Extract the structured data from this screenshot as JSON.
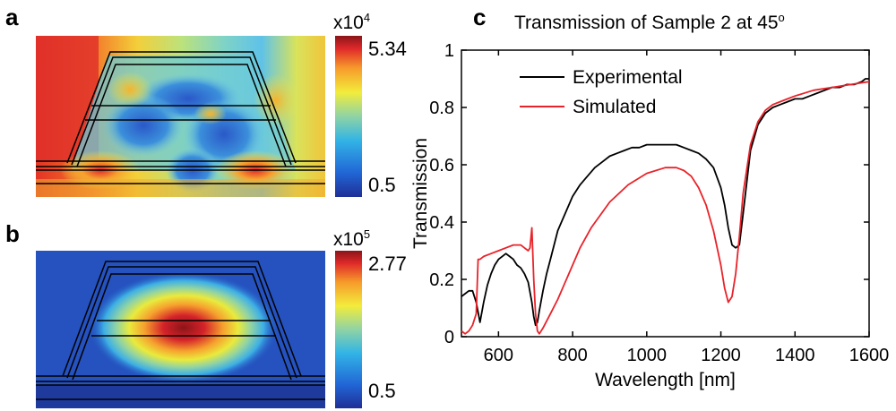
{
  "panels": {
    "a": {
      "letter": "a",
      "colorbar_exponent_base": "x10",
      "colorbar_exponent_power": "4",
      "colorbar_max": "5.34",
      "colorbar_min": "0.5"
    },
    "b": {
      "letter": "b",
      "colorbar_exponent_base": "x10",
      "colorbar_exponent_power": "5",
      "colorbar_max": "2.77",
      "colorbar_min": "0.5"
    },
    "c": {
      "letter": "c"
    }
  },
  "colors": {
    "experimental": "#000000",
    "simulated": "#e8232a"
  },
  "chart_data": [
    {
      "type": "heatmap",
      "panel": "a",
      "colorbar_range": [
        0.5,
        5.34
      ],
      "colorbar_scale": "x10^4"
    },
    {
      "type": "heatmap",
      "panel": "b",
      "colorbar_range": [
        0.5,
        2.77
      ],
      "colorbar_scale": "x10^5"
    },
    {
      "type": "line",
      "panel": "c",
      "title_main": "Transmission of Sample 2 at 45",
      "title_sup": "o",
      "xlabel": "Wavelength [nm]",
      "ylabel": "Transmission",
      "xlim": [
        500,
        1600
      ],
      "ylim": [
        0,
        1
      ],
      "xticks": [
        600,
        800,
        1000,
        1200,
        1400,
        1600
      ],
      "yticks": [
        0,
        0.2,
        0.4,
        0.6,
        0.8,
        1
      ],
      "ytick_labels": [
        "0",
        "0.2",
        "0.4",
        "0.6",
        "0.8",
        "1"
      ],
      "legend_position": "top-center",
      "series": [
        {
          "name": "Experimental",
          "color": "#000000",
          "x": [
            500,
            510,
            520,
            530,
            540,
            550,
            560,
            570,
            580,
            590,
            600,
            610,
            620,
            630,
            640,
            650,
            660,
            670,
            680,
            690,
            695,
            700,
            705,
            710,
            720,
            730,
            740,
            750,
            760,
            780,
            800,
            820,
            840,
            860,
            880,
            900,
            920,
            940,
            960,
            980,
            1000,
            1020,
            1040,
            1060,
            1080,
            1100,
            1120,
            1140,
            1160,
            1180,
            1200,
            1210,
            1220,
            1230,
            1240,
            1250,
            1260,
            1280,
            1300,
            1320,
            1340,
            1360,
            1380,
            1400,
            1420,
            1440,
            1460,
            1480,
            1500,
            1520,
            1540,
            1560,
            1580,
            1590,
            1600
          ],
          "y": [
            0.14,
            0.15,
            0.16,
            0.16,
            0.12,
            0.05,
            0.12,
            0.18,
            0.22,
            0.25,
            0.27,
            0.28,
            0.29,
            0.28,
            0.27,
            0.25,
            0.24,
            0.22,
            0.19,
            0.12,
            0.07,
            0.04,
            0.05,
            0.09,
            0.16,
            0.22,
            0.27,
            0.32,
            0.37,
            0.43,
            0.49,
            0.53,
            0.56,
            0.59,
            0.61,
            0.63,
            0.64,
            0.65,
            0.66,
            0.66,
            0.67,
            0.67,
            0.67,
            0.67,
            0.67,
            0.66,
            0.65,
            0.64,
            0.62,
            0.59,
            0.52,
            0.46,
            0.38,
            0.32,
            0.31,
            0.32,
            0.43,
            0.65,
            0.74,
            0.78,
            0.8,
            0.81,
            0.82,
            0.83,
            0.83,
            0.84,
            0.85,
            0.86,
            0.87,
            0.87,
            0.88,
            0.88,
            0.89,
            0.9,
            0.9
          ]
        },
        {
          "name": "Simulated",
          "color": "#e8232a",
          "x": [
            500,
            510,
            520,
            530,
            540,
            545,
            550,
            560,
            580,
            600,
            620,
            640,
            660,
            670,
            680,
            685,
            690,
            695,
            700,
            705,
            710,
            720,
            740,
            760,
            780,
            800,
            820,
            850,
            900,
            950,
            1000,
            1050,
            1080,
            1100,
            1120,
            1140,
            1160,
            1180,
            1200,
            1210,
            1220,
            1230,
            1240,
            1250,
            1260,
            1280,
            1300,
            1320,
            1340,
            1360,
            1380,
            1400,
            1450,
            1500,
            1550,
            1600
          ],
          "y": [
            0.02,
            0.01,
            0.02,
            0.04,
            0.08,
            0.27,
            0.27,
            0.28,
            0.29,
            0.3,
            0.31,
            0.32,
            0.32,
            0.31,
            0.3,
            0.31,
            0.38,
            0.2,
            0.08,
            0.02,
            0.01,
            0.03,
            0.08,
            0.13,
            0.19,
            0.25,
            0.31,
            0.38,
            0.47,
            0.53,
            0.57,
            0.59,
            0.59,
            0.58,
            0.56,
            0.52,
            0.46,
            0.37,
            0.25,
            0.17,
            0.12,
            0.14,
            0.22,
            0.35,
            0.5,
            0.67,
            0.75,
            0.79,
            0.81,
            0.82,
            0.83,
            0.84,
            0.86,
            0.87,
            0.88,
            0.89
          ]
        }
      ]
    }
  ]
}
